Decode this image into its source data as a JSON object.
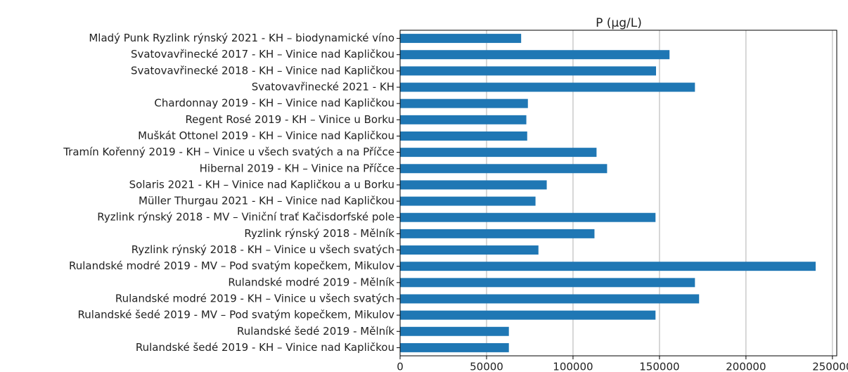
{
  "chart_data": {
    "type": "barh",
    "title": "P (µg/L)",
    "categories": [
      "Mladý Punk Ryzlink rýnský 2021 - KH – biodynamické víno",
      "Svatovavřinecké 2017 - KH – Vinice nad Kapličkou",
      "Svatovavřinecké 2018 - KH – Vinice nad Kapličkou",
      "Svatovavřinecké 2021 - KH",
      "Chardonnay 2019 - KH – Vinice nad Kapličkou",
      "Regent Rosé 2019 - KH – Vinice u Borku",
      "Muškát Ottonel 2019 - KH – Vinice nad Kapličkou",
      "Tramín Kořenný 2019 - KH – Vinice u všech svatých a na Příčce",
      "Hibernal 2019 - KH – Vinice na Příčce",
      "Solaris 2021 - KH – Vinice nad Kapličkou a u Borku",
      "Müller Thurgau 2021 - KH – Vinice nad Kapličkou",
      "Ryzlink rýnský 2018 - MV – Viniční trať Kačisdorfské pole",
      "Ryzlink rýnský 2018 - Mělník",
      "Ryzlink rýnský 2018 - KH – Vinice u všech svatých",
      "Rulandské modré 2019 - MV – Pod svatým kopečkem, Mikulov",
      "Rulandské modré 2019 - Mělník",
      "Rulandské modré 2019 - KH – Vinice u všech svatých",
      "Rulandské šedé 2019 - MV – Pod svatým kopečkem, Mikulov",
      "Rulandské šedé 2019 - Mělník",
      "Rulandské šedé 2019 - KH – Vinice nad Kapličkou"
    ],
    "values": [
      70000,
      155800,
      148000,
      170500,
      73900,
      73000,
      73500,
      113600,
      119700,
      84800,
      78300,
      147700,
      112400,
      80000,
      240300,
      170500,
      172900,
      147700,
      62900,
      62900
    ],
    "color": "#1f77b4",
    "xlim": [
      0,
      252500
    ],
    "xticks": [
      0,
      50000,
      100000,
      150000,
      200000,
      250000
    ],
    "grid": true
  }
}
